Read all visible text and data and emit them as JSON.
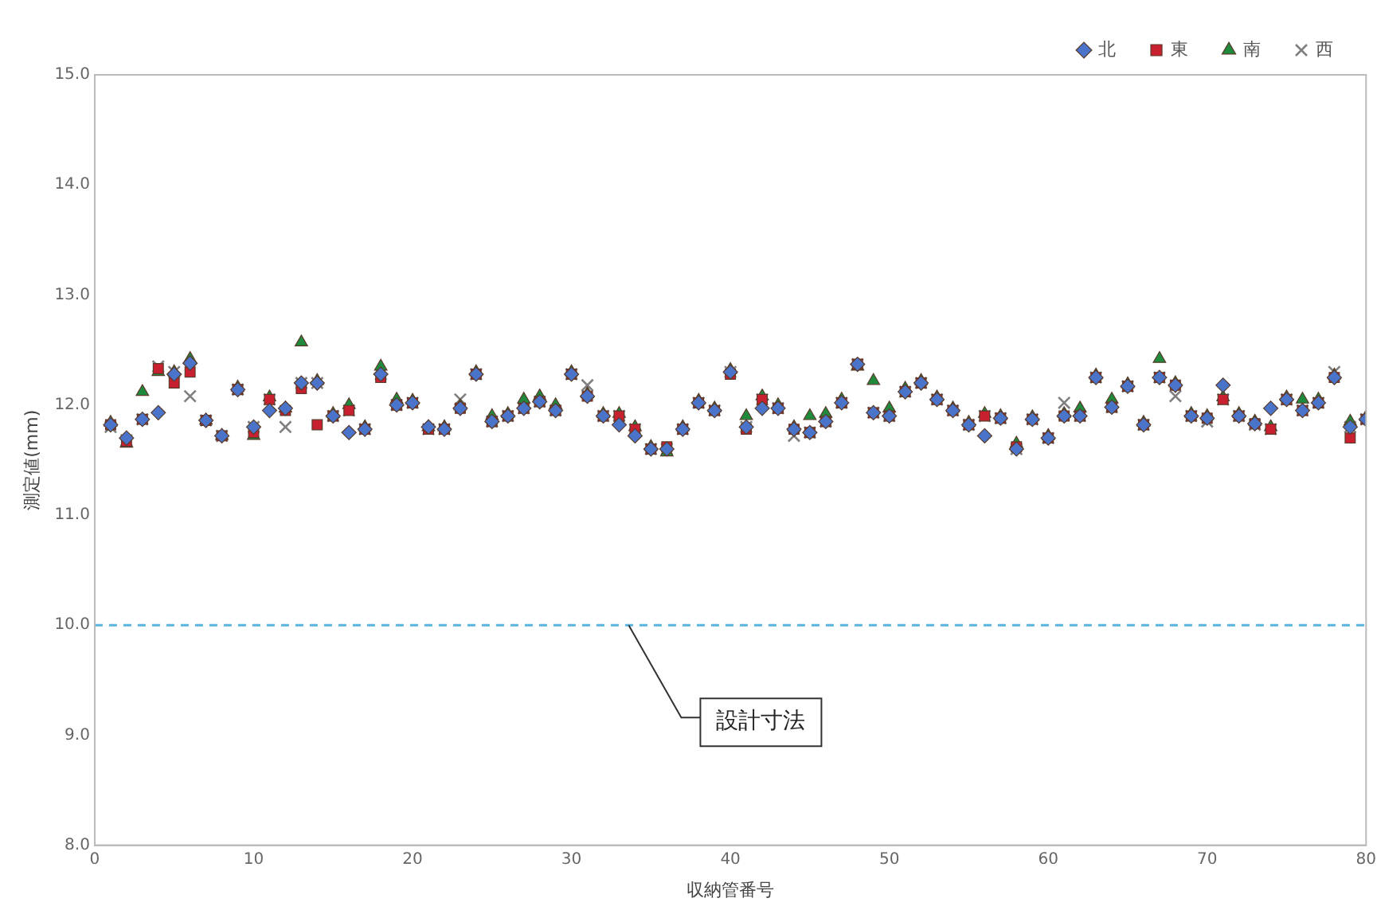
{
  "chart_data": {
    "type": "scatter",
    "xlabel": "収納管番号",
    "ylabel": "測定値(mm)",
    "x": [
      1,
      2,
      3,
      4,
      5,
      6,
      7,
      8,
      9,
      10,
      11,
      12,
      13,
      14,
      15,
      16,
      17,
      18,
      19,
      20,
      21,
      22,
      23,
      24,
      25,
      26,
      27,
      28,
      29,
      30,
      31,
      32,
      33,
      34,
      35,
      36,
      37,
      38,
      39,
      40,
      41,
      42,
      43,
      44,
      45,
      46,
      47,
      48,
      49,
      50,
      51,
      52,
      53,
      54,
      55,
      56,
      57,
      58,
      59,
      60,
      61,
      62,
      63,
      64,
      65,
      66,
      67,
      68,
      69,
      70,
      71,
      72,
      73,
      74,
      75,
      76,
      77,
      78,
      79,
      80
    ],
    "series": [
      {
        "name": "北",
        "color": "#4a74c9",
        "marker": "diamond",
        "values": [
          11.82,
          11.7,
          11.87,
          11.93,
          12.28,
          12.38,
          11.86,
          11.72,
          12.14,
          11.8,
          11.95,
          11.97,
          12.2,
          12.2,
          11.9,
          11.75,
          11.78,
          12.28,
          12.0,
          12.02,
          11.8,
          11.78,
          11.97,
          12.28,
          11.85,
          11.9,
          11.97,
          12.03,
          11.95,
          12.28,
          12.08,
          11.9,
          11.82,
          11.72,
          11.6,
          11.6,
          11.78,
          12.02,
          11.95,
          12.3,
          11.8,
          11.97,
          11.97,
          11.78,
          11.75,
          11.85,
          12.02,
          12.37,
          11.93,
          11.9,
          12.12,
          12.2,
          12.05,
          11.95,
          11.82,
          11.72,
          11.88,
          11.6,
          11.87,
          11.7,
          11.9,
          11.9,
          12.25,
          11.98,
          12.17,
          11.82,
          12.25,
          12.18,
          11.9,
          11.88,
          12.18,
          11.9,
          11.83,
          11.97,
          12.05,
          11.95,
          12.02,
          12.25,
          11.8,
          11.87
        ]
      },
      {
        "name": "東",
        "color": "#c8202f",
        "marker": "square",
        "values": [
          11.82,
          11.67,
          11.87,
          12.33,
          12.2,
          12.3,
          11.86,
          11.72,
          12.14,
          11.75,
          12.05,
          11.95,
          12.15,
          11.82,
          11.9,
          11.95,
          11.78,
          12.25,
          12.0,
          12.02,
          11.78,
          11.78,
          11.97,
          12.28,
          11.85,
          11.9,
          11.97,
          12.03,
          11.95,
          12.28,
          12.08,
          11.9,
          11.9,
          11.78,
          11.6,
          11.62,
          11.78,
          12.02,
          11.95,
          12.28,
          11.78,
          12.05,
          11.97,
          11.78,
          11.75,
          11.85,
          12.02,
          12.37,
          11.93,
          11.9,
          12.12,
          12.2,
          12.05,
          11.95,
          11.82,
          11.9,
          11.88,
          11.62,
          11.87,
          11.7,
          11.9,
          11.9,
          12.25,
          11.98,
          12.17,
          11.82,
          12.25,
          12.18,
          11.9,
          11.88,
          12.05,
          11.9,
          11.83,
          11.78,
          12.05,
          11.95,
          12.02,
          12.25,
          11.7,
          11.87
        ]
      },
      {
        "name": "南",
        "color": "#1f8a3c",
        "marker": "triangle",
        "values": [
          11.84,
          11.65,
          12.12,
          12.3,
          12.3,
          12.42,
          11.86,
          11.72,
          12.16,
          11.72,
          12.07,
          11.97,
          12.57,
          12.22,
          11.92,
          12.0,
          11.8,
          12.35,
          12.05,
          12.04,
          11.8,
          11.8,
          11.99,
          12.3,
          11.9,
          11.92,
          12.05,
          12.08,
          12.0,
          12.3,
          12.1,
          11.92,
          11.92,
          11.8,
          11.62,
          11.57,
          11.8,
          12.04,
          11.97,
          12.32,
          11.9,
          12.08,
          12.0,
          11.8,
          11.9,
          11.92,
          12.05,
          12.35,
          12.22,
          11.97,
          12.15,
          12.22,
          12.07,
          11.97,
          11.84,
          11.92,
          11.9,
          11.65,
          11.89,
          11.72,
          11.92,
          11.97,
          12.27,
          12.05,
          12.19,
          11.84,
          12.42,
          12.2,
          11.92,
          11.9,
          12.07,
          11.92,
          11.85,
          11.8,
          12.07,
          12.05,
          12.05,
          12.27,
          11.85,
          11.89
        ]
      },
      {
        "name": "西",
        "color": "#7f7f7f",
        "marker": "cross",
        "values": [
          11.8,
          11.68,
          11.87,
          12.35,
          12.3,
          12.08,
          11.86,
          11.72,
          12.14,
          11.8,
          12.05,
          11.8,
          12.2,
          12.2,
          11.9,
          11.95,
          11.78,
          12.28,
          12.0,
          12.02,
          11.78,
          11.78,
          12.05,
          12.28,
          11.85,
          11.9,
          11.97,
          12.03,
          11.95,
          12.28,
          12.18,
          11.9,
          11.9,
          11.78,
          11.6,
          11.6,
          11.78,
          12.02,
          11.95,
          12.3,
          11.8,
          12.05,
          11.97,
          11.72,
          11.75,
          11.85,
          12.02,
          12.37,
          11.93,
          11.9,
          12.12,
          12.2,
          12.05,
          11.95,
          11.82,
          11.9,
          11.88,
          11.6,
          11.87,
          11.7,
          12.02,
          11.9,
          12.25,
          11.98,
          12.17,
          11.82,
          12.25,
          12.08,
          11.9,
          11.85,
          12.05,
          11.9,
          11.82,
          11.78,
          12.05,
          11.95,
          12.02,
          12.3,
          11.8,
          11.87
        ]
      }
    ],
    "xlim": [
      0,
      80
    ],
    "xticks": [
      0,
      10,
      20,
      30,
      40,
      50,
      60,
      70,
      80
    ],
    "ylim": [
      8,
      15
    ],
    "yticks": [
      {
        "value": 8,
        "label": "8.0"
      },
      {
        "value": 9,
        "label": "9.0"
      },
      {
        "value": 10,
        "label": "10.0"
      },
      {
        "value": 11,
        "label": "11.0"
      },
      {
        "value": 12,
        "label": "12.0"
      },
      {
        "value": 13,
        "label": "13.0"
      },
      {
        "value": 14,
        "label": "14.0"
      },
      {
        "value": 15,
        "label": "15.0"
      }
    ],
    "ref_lines": [
      {
        "axis": "y",
        "value": 10,
        "label": "設計寸法",
        "color": "#5ab4e0",
        "line_style": "dashed"
      }
    ],
    "legend": "top right",
    "grid": false
  }
}
